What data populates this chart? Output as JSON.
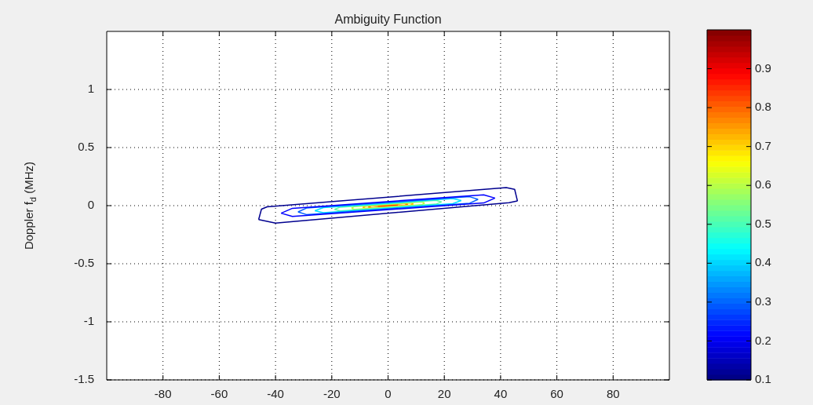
{
  "chart_data": {
    "type": "line",
    "title": "Ambiguity Function",
    "ylabel": "Doppler f$_{d}$ (MHz)",
    "xlim": [
      -100,
      100
    ],
    "xticks": [
      -80,
      -60,
      -40,
      -20,
      0,
      20,
      40,
      60,
      80
    ],
    "ylim": [
      -1.5,
      1.5
    ],
    "yticks": [
      -1.5,
      -1,
      -0.5,
      0,
      0.5,
      1
    ],
    "grid": true,
    "legend": false,
    "marker": "none",
    "clim": [
      0.1,
      1
    ],
    "cticks": [
      0.1,
      0.2,
      0.3,
      0.4,
      0.5,
      0.6,
      0.7,
      0.8,
      0.9
    ],
    "series": [
      {
        "color": "#00008f",
        "x": [
          -46,
          -45,
          -43,
          42,
          45,
          46
        ],
        "values": [
          -0.12,
          -0.03,
          -0.01,
          0.155,
          0.14,
          0.04
        ]
      },
      {
        "color": "#00008f",
        "x": [
          -46,
          -40,
          43,
          46
        ],
        "values": [
          -0.12,
          -0.15,
          0.025,
          0.04
        ]
      },
      {
        "color": "#0000ff",
        "x": [
          -38,
          -34,
          34,
          38
        ],
        "values": [
          -0.065,
          -0.023,
          0.093,
          0.065
        ]
      },
      {
        "color": "#0000ff",
        "x": [
          -38,
          -34,
          34,
          38
        ],
        "values": [
          -0.065,
          -0.093,
          0.023,
          0.065
        ]
      },
      {
        "color": "#0060ff",
        "x": [
          -32,
          -29,
          29,
          32
        ],
        "values": [
          -0.054,
          -0.021,
          0.077,
          0.054
        ]
      },
      {
        "color": "#0060ff",
        "x": [
          -32,
          -29,
          29,
          32
        ],
        "values": [
          -0.054,
          -0.077,
          0.021,
          0.054
        ]
      },
      {
        "color": "#00e0ff",
        "x": [
          -26,
          -23,
          23,
          26
        ],
        "values": [
          -0.044,
          -0.017,
          0.061,
          0.044
        ]
      },
      {
        "color": "#00e0ff",
        "x": [
          -26,
          -23,
          23,
          26
        ],
        "values": [
          -0.044,
          -0.061,
          0.017,
          0.044
        ]
      },
      {
        "color": "#60ffa0",
        "x": [
          -19,
          -17,
          17,
          19
        ],
        "values": [
          -0.032,
          -0.013,
          0.045,
          0.032
        ]
      },
      {
        "color": "#60ffa0",
        "x": [
          -19,
          -17,
          17,
          19
        ],
        "values": [
          -0.032,
          -0.045,
          0.013,
          0.032
        ]
      },
      {
        "color": "#c0ff40",
        "x": [
          -13,
          -12,
          12,
          13
        ],
        "values": [
          -0.022,
          -0.008,
          0.032,
          0.022
        ]
      },
      {
        "color": "#c0ff40",
        "x": [
          -13,
          -12,
          12,
          13
        ],
        "values": [
          -0.022,
          -0.032,
          0.008,
          0.022
        ]
      },
      {
        "color": "#ffc000",
        "x": [
          -9,
          -8,
          8,
          9
        ],
        "values": [
          -0.015,
          -0.005,
          0.023,
          0.015
        ]
      },
      {
        "color": "#ffc000",
        "x": [
          -9,
          -8,
          8,
          9
        ],
        "values": [
          -0.015,
          -0.023,
          0.005,
          0.015
        ]
      },
      {
        "color": "#ff6000",
        "x": [
          -7,
          -6,
          6,
          7
        ],
        "values": [
          -0.012,
          -0.003,
          0.019,
          0.012
        ]
      },
      {
        "color": "#ff6000",
        "x": [
          -7,
          -6,
          6,
          7
        ],
        "values": [
          -0.012,
          -0.019,
          0.003,
          0.012
        ]
      },
      {
        "color": "#ff0000",
        "x": [
          -3.5,
          -3,
          3,
          3.5
        ],
        "values": [
          -0.006,
          -0.001,
          0.009,
          0.006
        ]
      },
      {
        "color": "#ff0000",
        "x": [
          -3.5,
          -3,
          3,
          3.5
        ],
        "values": [
          -0.006,
          -0.009,
          0.001,
          0.006
        ]
      }
    ]
  }
}
